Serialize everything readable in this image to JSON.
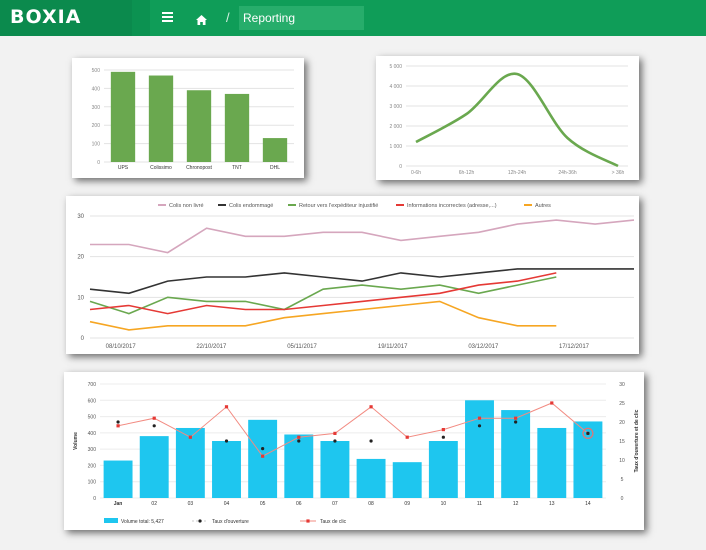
{
  "app": {
    "brand": "BOXIA",
    "breadcrumb": "Reporting",
    "breadcrumb_separator": "/",
    "accent": "#0f9d58",
    "icons": [
      "menu-icon",
      "home-icon"
    ]
  },
  "chart_data": [
    {
      "type": "bar",
      "categories": [
        "UPS",
        "Colissimo",
        "Chronopost",
        "TNT",
        "DHL"
      ],
      "values": [
        490,
        470,
        390,
        370,
        130
      ],
      "ylim": [
        0,
        500
      ],
      "yticks": [
        "500",
        "400",
        "300",
        "200",
        "100",
        "0"
      ],
      "color": "#6aa84f",
      "grid": true
    },
    {
      "type": "line",
      "categories": [
        "0-6h",
        "6h-12h",
        "12h-24h",
        "24h-36h",
        "> 36h"
      ],
      "values": [
        1200,
        2600,
        4600,
        1400,
        0
      ],
      "ylim": [
        0,
        5000
      ],
      "yticks": [
        "5 000",
        "4 000",
        "3 000",
        "2 000",
        "1 000",
        "0"
      ],
      "color": "#6aa84f",
      "grid": true
    },
    {
      "type": "line",
      "legend_position": "top",
      "ylim": [
        0,
        30
      ],
      "yticks": [
        "30",
        "20",
        "10",
        "0"
      ],
      "x_tick_labels": [
        "08/10/2017",
        "22/10/2017",
        "05/11/2017",
        "19/11/2017",
        "03/12/2017",
        "17/12/2017"
      ],
      "x_tick_index": [
        1,
        5,
        9,
        13,
        17,
        21
      ],
      "series": [
        {
          "name": "Colis non livré",
          "color": "#d5a6bd",
          "values": [
            23,
            23,
            21,
            27,
            25,
            25,
            26,
            26,
            24,
            25,
            26,
            28,
            29,
            28,
            29
          ]
        },
        {
          "name": "Colis endommagé",
          "color": "#333333",
          "values": [
            12,
            11,
            14,
            15,
            15,
            16,
            15,
            14,
            16,
            15,
            16,
            17,
            17,
            17,
            17
          ]
        },
        {
          "name": "Retour vers l'expéditeur injustifié",
          "color": "#6aa84f",
          "values": [
            9,
            6,
            10,
            9,
            9,
            7,
            12,
            13,
            12,
            13,
            11,
            13,
            15
          ]
        },
        {
          "name": "Informations incorrectes (adresse,...)",
          "color": "#e53935",
          "values": [
            7,
            8,
            6,
            8,
            7,
            7,
            8,
            9,
            10,
            11,
            13,
            14,
            16
          ]
        },
        {
          "name": "Autres",
          "color": "#f6a623",
          "values": [
            4,
            2,
            3,
            3,
            3,
            5,
            6,
            7,
            8,
            9,
            5,
            3,
            3
          ]
        }
      ]
    },
    {
      "type": "bar",
      "categories": [
        "Jan",
        "02",
        "03",
        "04",
        "05",
        "06",
        "07",
        "08",
        "09",
        "10",
        "11",
        "12",
        "13",
        "14"
      ],
      "values": [
        230,
        380,
        430,
        350,
        480,
        390,
        350,
        240,
        220,
        350,
        600,
        540,
        430,
        470
      ],
      "ylabel": "Volume",
      "ylim": [
        0,
        700
      ],
      "yticks": [
        "700",
        "600",
        "500",
        "400",
        "300",
        "200",
        "100",
        "0"
      ],
      "y2label": "Taux d'ouverture et de clic",
      "y2lim": [
        0,
        30
      ],
      "y2ticks": [
        "30",
        "25",
        "20",
        "15",
        "10",
        "5",
        "0"
      ],
      "bar_color": "#1ec6ef",
      "line_series": [
        {
          "name": "Taux d'ouverture",
          "color": "#222222",
          "values": [
            20,
            19,
            null,
            15,
            13,
            15,
            15,
            15,
            null,
            16,
            19,
            20,
            null,
            17
          ]
        },
        {
          "name": "Taux de clic",
          "color": "#f28b82",
          "values": [
            19,
            21,
            16,
            24,
            11,
            16,
            17,
            24,
            16,
            18,
            21,
            21,
            25,
            17
          ]
        }
      ],
      "legend_bar": "Volume total: 5,427",
      "legend_open": "Taux d'ouverture",
      "legend_click": "Taux de clic"
    }
  ]
}
